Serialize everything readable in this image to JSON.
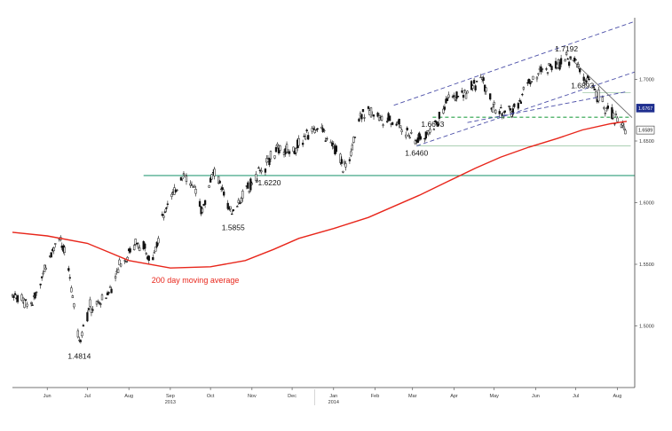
{
  "colors": {
    "candles": "#111111",
    "moving_average": "#e8261b",
    "support_line": "#2e9e7a",
    "channel": "#4b4fa8",
    "resistance_dash": "#2aa24a",
    "reference_line": "#9fc9a8",
    "axis": "#444444"
  },
  "chart_data": {
    "type": "line",
    "title": "",
    "xlabel": "",
    "ylabel": "",
    "ylim": [
      1.45,
      1.75
    ],
    "x_months": [
      "Jun",
      "Jul",
      "Aug",
      "Sep",
      "Oct",
      "Nov",
      "Dec",
      "Jan",
      "Feb",
      "Mar",
      "Apr",
      "May",
      "Jun",
      "Jul",
      "Aug"
    ],
    "x_years": [
      "2013",
      "2014"
    ],
    "y_ticks": [
      "1.7000",
      "1.6500",
      "1.6000",
      "1.5500",
      "1.5000"
    ],
    "right_tags": [
      "1.6767",
      "1.6589"
    ],
    "series": [
      {
        "name": "",
        "kind": "daily price",
        "points": [
          [
            "2013-05-20",
            1.527
          ],
          [
            "2013-06-03",
            1.516
          ],
          [
            "2013-06-17",
            1.557
          ],
          [
            "2013-06-24",
            1.574
          ],
          [
            "2013-07-01",
            1.545
          ],
          [
            "2013-07-09",
            1.487
          ],
          [
            "2013-07-16",
            1.514
          ],
          [
            "2013-07-29",
            1.522
          ],
          [
            "2013-08-08",
            1.55
          ],
          [
            "2013-08-20",
            1.567
          ],
          [
            "2013-09-02",
            1.556
          ],
          [
            "2013-09-10",
            1.59
          ],
          [
            "2013-09-24",
            1.623
          ],
          [
            "2013-10-03",
            1.61
          ],
          [
            "2013-10-09",
            1.595
          ],
          [
            "2013-10-18",
            1.626
          ],
          [
            "2013-10-31",
            1.59
          ],
          [
            "2013-11-07",
            1.604
          ],
          [
            "2013-11-18",
            1.621
          ],
          [
            "2013-12-03",
            1.642
          ],
          [
            "2013-12-17",
            1.643
          ],
          [
            "2014-01-02",
            1.663
          ],
          [
            "2014-01-14",
            1.648
          ],
          [
            "2014-01-24",
            1.626
          ],
          [
            "2014-02-04",
            1.673
          ],
          [
            "2014-02-17",
            1.67
          ],
          [
            "2014-03-03",
            1.665
          ],
          [
            "2014-03-17",
            1.65
          ],
          [
            "2014-03-31",
            1.66
          ],
          [
            "2014-04-10",
            1.683
          ],
          [
            "2014-04-24",
            1.69
          ],
          [
            "2014-05-06",
            1.7
          ],
          [
            "2014-05-15",
            1.675
          ],
          [
            "2014-05-29",
            1.673
          ],
          [
            "2014-06-10",
            1.699
          ],
          [
            "2014-06-24",
            1.71
          ],
          [
            "2014-07-08",
            1.718
          ],
          [
            "2014-07-15",
            1.712
          ],
          [
            "2014-07-25",
            1.697
          ],
          [
            "2014-08-04",
            1.68
          ],
          [
            "2014-08-11",
            1.673
          ],
          [
            "2014-08-19",
            1.661
          ],
          [
            "2014-08-22",
            1.659
          ]
        ]
      },
      {
        "name": "200 day moving average",
        "kind": "200 day moving average",
        "points": [
          [
            "2013-05-20",
            1.576
          ],
          [
            "2013-06-15",
            1.573
          ],
          [
            "2013-07-15",
            1.567
          ],
          [
            "2013-08-15",
            1.553
          ],
          [
            "2013-09-15",
            1.547
          ],
          [
            "2013-10-15",
            1.548
          ],
          [
            "2013-11-10",
            1.553
          ],
          [
            "2013-12-01",
            1.562
          ],
          [
            "2013-12-20",
            1.571
          ],
          [
            "2014-01-15",
            1.579
          ],
          [
            "2014-02-10",
            1.588
          ],
          [
            "2014-03-01",
            1.597
          ],
          [
            "2014-03-20",
            1.606
          ],
          [
            "2014-04-10",
            1.617
          ],
          [
            "2014-05-01",
            1.628
          ],
          [
            "2014-05-20",
            1.637
          ],
          [
            "2014-06-10",
            1.645
          ],
          [
            "2014-07-01",
            1.652
          ],
          [
            "2014-07-20",
            1.659
          ],
          [
            "2014-08-10",
            1.664
          ],
          [
            "2014-08-22",
            1.666
          ]
        ]
      }
    ],
    "annotations": [
      {
        "label": "1.4814",
        "date": "2013-07-09",
        "value": 1.4814,
        "placement": "below"
      },
      {
        "label": "1.5855",
        "date": "2013-11-01",
        "value": 1.5855,
        "placement": "below"
      },
      {
        "label": "1.6220",
        "date": "2013-11-28",
        "value": 1.622,
        "placement": "below"
      },
      {
        "label": "1.6460",
        "date": "2014-03-18",
        "value": 1.646,
        "placement": "below"
      },
      {
        "label": "1.6693",
        "date": "2014-03-30",
        "value": 1.6693,
        "placement": "below"
      },
      {
        "label": "1.6893",
        "date": "2014-07-20",
        "value": 1.6893,
        "placement": "above"
      },
      {
        "label": "1.7192",
        "date": "2014-07-08",
        "value": 1.7192,
        "placement": "above"
      },
      {
        "label": "200 day moving average",
        "date": "2013-09-01",
        "value": 1.535,
        "placement": "right",
        "color": "moving_average"
      }
    ],
    "levels": [
      {
        "name": "support",
        "value": 1.622,
        "from": "2013-08-26",
        "to": "2014-08-28",
        "style": "solid"
      },
      {
        "name": "resistance",
        "value": 1.6693,
        "from": "2014-03-30",
        "to": "2014-08-25",
        "style": "dashed"
      },
      {
        "name": "swing-low",
        "value": 1.646,
        "from": "2014-03-18",
        "to": "2014-08-25",
        "style": "solid-light"
      },
      {
        "name": "upper-ref",
        "value": 1.6893,
        "from": "2014-07-20",
        "to": "2014-08-25",
        "style": "solid-light"
      }
    ],
    "trendlines": [
      {
        "name": "channel-upper",
        "from": [
          "2014-03-01",
          1.679
        ],
        "to": [
          "2014-08-28",
          1.747
        ],
        "style": "dashed"
      },
      {
        "name": "channel-middle",
        "from": [
          "2014-03-18",
          1.646
        ],
        "to": [
          "2014-08-28",
          1.706
        ],
        "style": "dashed"
      },
      {
        "name": "channel-lower",
        "from": [
          "2014-04-25",
          1.665
        ],
        "to": [
          "2014-08-22",
          1.69
        ],
        "style": "dashed"
      },
      {
        "name": "downtrend",
        "from": [
          "2014-07-10",
          1.718
        ],
        "to": [
          "2014-08-26",
          1.669
        ],
        "style": "solid"
      }
    ],
    "grid": false,
    "legend": "none"
  }
}
